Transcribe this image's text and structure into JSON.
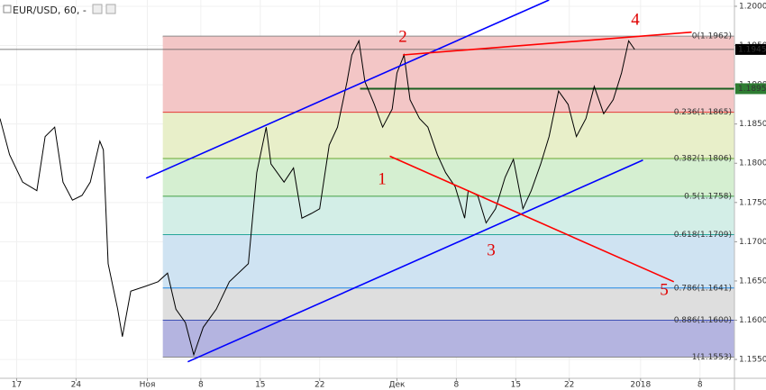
{
  "header": {
    "symbol": "EUR/USD, 60, -"
  },
  "chart_data": {
    "type": "line",
    "x": [
      -1.4,
      -0.6,
      0.5,
      1.7,
      2.4,
      3.2,
      3.9,
      4.7,
      5.5,
      6.2,
      7.0,
      7.3,
      7.7,
      8.5,
      8.9,
      9.6,
      10.8,
      11.9,
      12.7,
      13.4,
      14.2,
      14.9,
      15.7,
      16.8,
      17.9,
      19.5,
      20.2,
      21.0,
      21.4,
      22.5,
      23.3,
      24.0,
      24.8,
      25.5,
      26.3,
      27.0,
      27.8,
      28.2,
      28.8,
      29.3,
      30.1,
      30.8,
      31.6,
      32.0,
      32.6,
      33.1,
      33.9,
      34.6,
      35.4,
      36.1,
      36.9,
      37.7,
      38.0,
      38.8,
      39.5,
      40.3,
      41.1,
      41.8,
      42.6,
      43.3,
      44.1,
      44.8,
      45.6,
      46.4,
      47.1,
      47.9,
      48.6,
      49.4,
      50.2,
      50.9,
      51.5,
      52.0
    ],
    "series": [
      {
        "color": "#000000",
        "values": [
          1.1857,
          1.1811,
          1.1776,
          1.1765,
          1.1834,
          1.1846,
          1.1776,
          1.1753,
          1.1759,
          1.1776,
          1.1828,
          1.1817,
          1.1672,
          1.1614,
          1.1579,
          1.1637,
          1.1643,
          1.1649,
          1.166,
          1.1614,
          1.1597,
          1.1556,
          1.1591,
          1.1614,
          1.1649,
          1.1672,
          1.1788,
          1.1846,
          1.1799,
          1.1776,
          1.1794,
          1.173,
          1.1736,
          1.1742,
          1.1823,
          1.1846,
          1.1904,
          1.1938,
          1.1956,
          1.1904,
          1.1875,
          1.1846,
          1.1869,
          1.1915,
          1.1938,
          1.1881,
          1.1857,
          1.1846,
          1.1811,
          1.1788,
          1.177,
          1.173,
          1.1765,
          1.1759,
          1.1724,
          1.1742,
          1.1782,
          1.1805,
          1.1742,
          1.1765,
          1.1799,
          1.1834,
          1.1892,
          1.1875,
          1.1834,
          1.1857,
          1.1898,
          1.1863,
          1.1881,
          1.1915,
          1.1956,
          1.1945
        ]
      }
    ],
    "xlim": [
      -1.4,
      60.4
    ],
    "xticks": [
      {
        "value": 0,
        "label": "17"
      },
      {
        "value": 5,
        "label": "24"
      },
      {
        "value": 11,
        "label": "Ноя"
      },
      {
        "value": 15.5,
        "label": "8"
      },
      {
        "value": 20.5,
        "label": "15"
      },
      {
        "value": 25.5,
        "label": "22"
      },
      {
        "value": 32,
        "label": "Дек"
      },
      {
        "value": 37,
        "label": "8"
      },
      {
        "value": 42,
        "label": "15"
      },
      {
        "value": 46.5,
        "label": "22"
      },
      {
        "value": 52.5,
        "label": "2018"
      },
      {
        "value": 57.5,
        "label": "8"
      }
    ],
    "ylim": [
      1.1526,
      1.2008
    ],
    "yticks": [
      {
        "value": 1.2,
        "label": "1.2000"
      },
      {
        "value": 1.195,
        "label": "1.1950"
      },
      {
        "value": 1.19,
        "label": "1.1900"
      },
      {
        "value": 1.185,
        "label": "1.1850"
      },
      {
        "value": 1.18,
        "label": "1.1800"
      },
      {
        "value": 1.175,
        "label": "1.1750"
      },
      {
        "value": 1.17,
        "label": "1.1700"
      },
      {
        "value": 1.165,
        "label": "1.1650"
      },
      {
        "value": 1.16,
        "label": "1.1600"
      },
      {
        "value": 1.155,
        "label": "1.1550"
      }
    ],
    "grid": true,
    "fibonacci": {
      "start_x": 12.3,
      "end_x": 60.4,
      "levels": [
        {
          "price": 1.1962,
          "label": "0(1.1962)",
          "color": "#8a8a8a",
          "fill": "#f3c6c6"
        },
        {
          "price": 1.1865,
          "label": "0.236(1.1865)",
          "color": "#e53935",
          "fill": "#e8efc9"
        },
        {
          "price": 1.1806,
          "label": "0.382(1.1806)",
          "color": "#66a832",
          "fill": "#d5efd1"
        },
        {
          "price": 1.1758,
          "label": "0.5(1.1758)",
          "color": "#43a047",
          "fill": "#d3eee7"
        },
        {
          "price": 1.1709,
          "label": "0.618(1.1709)",
          "color": "#26a69a",
          "fill": "#cfe3f2"
        },
        {
          "price": 1.1641,
          "label": "0.786(1.1641)",
          "color": "#1e88e5",
          "fill": "#dedede"
        },
        {
          "price": 1.16,
          "label": "0.886(1.1600)",
          "color": "#3f51b5",
          "fill": "#b4b4e0"
        },
        {
          "price": 1.1553,
          "label": "1(1.1553)",
          "color": "#8a8a8a"
        }
      ]
    },
    "trend_lines": [
      {
        "color": "#0000ff",
        "x": [
          10.9,
          44.8
        ],
        "y": [
          1.1781,
          1.2008
        ]
      },
      {
        "color": "#0000ff",
        "x": [
          14.4,
          52.7
        ],
        "y": [
          1.1547,
          1.1804
        ]
      },
      {
        "color": "#ff0000",
        "x": [
          31.4,
          55.3
        ],
        "y": [
          1.1809,
          1.1649
        ]
      },
      {
        "color": "#ff0000",
        "x": [
          32.5,
          56.8
        ],
        "y": [
          1.1938,
          1.1967
        ]
      }
    ],
    "horizontal_lines": [
      {
        "value": 1.1945,
        "from_x": -1.4,
        "color": "#555555",
        "badge": "#000000"
      },
      {
        "value": 1.1895,
        "from_x": 28.9,
        "color": "#1b5e20",
        "badge": "#2e7d32"
      }
    ],
    "annotations": [
      "1",
      "2",
      "3",
      "4",
      "5"
    ]
  }
}
